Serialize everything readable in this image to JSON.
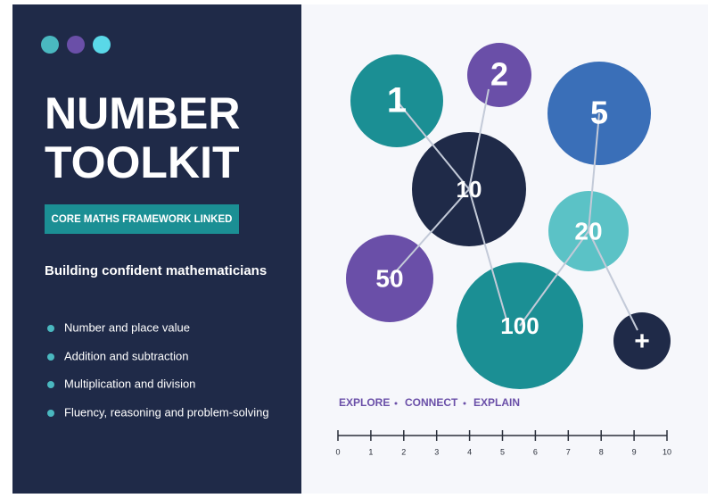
{
  "header": {
    "title_lines": [
      "NUMBER",
      "TOOLKIT"
    ],
    "badge": "CORE MATHS FRAMEWORK LINKED",
    "subtitle": "Building confident mathematicians"
  },
  "topics": [
    "Number and place value",
    "Addition and subtraction",
    "Multiplication and division",
    "Fluency, reasoning and problem-solving"
  ],
  "bubbles": [
    "1",
    "2",
    "5",
    "10",
    "20",
    "50",
    "100",
    "+"
  ],
  "tagline": [
    "EXPLORE",
    "CONNECT",
    "EXPLAIN"
  ],
  "number_line": [
    0,
    1,
    2,
    3,
    4,
    5,
    6,
    7,
    8,
    9,
    10
  ]
}
